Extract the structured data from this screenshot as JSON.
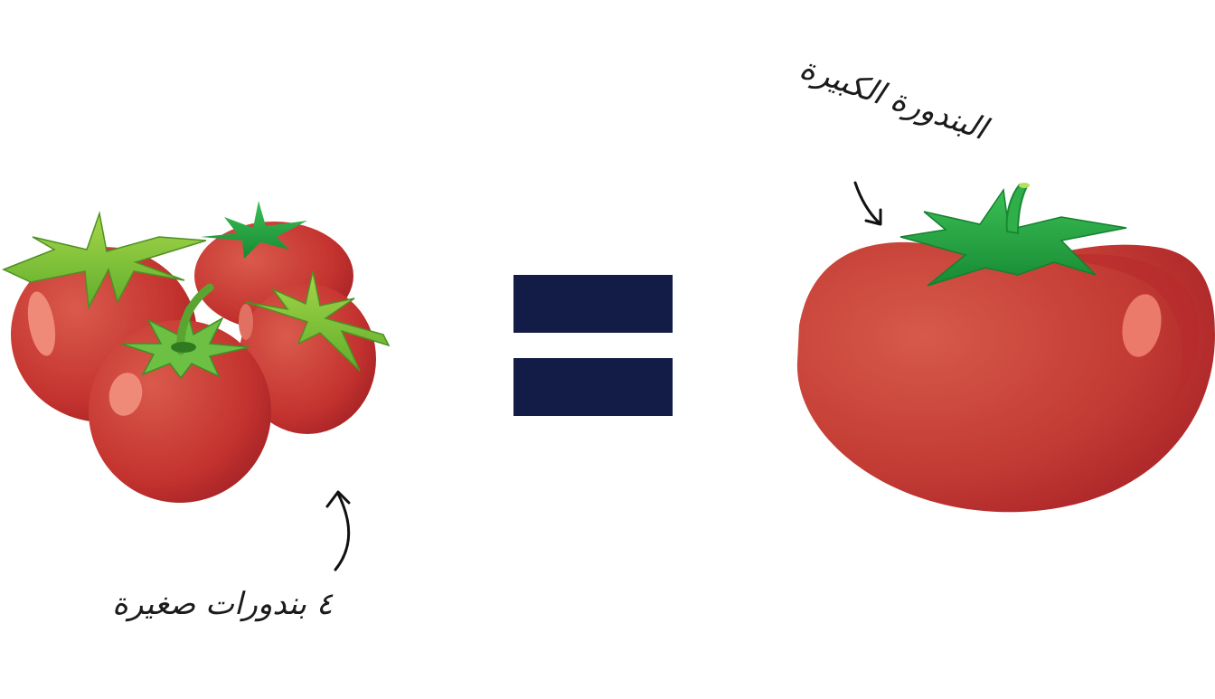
{
  "labels": {
    "small_tomatoes": "٤ بندورات صغيرة",
    "big_tomato": "البندورة الكبيرة"
  },
  "colors": {
    "equals_sign": "#131c47",
    "tomato_red": "#c93a32",
    "tomato_dark": "#a9242a",
    "highlight": "#f08a78",
    "leaf_dark": "#1e9a3b",
    "leaf_light": "#7cc247"
  },
  "icons": {
    "left": "small-tomatoes-cluster",
    "middle": "equals-sign",
    "right": "large-tomato"
  }
}
